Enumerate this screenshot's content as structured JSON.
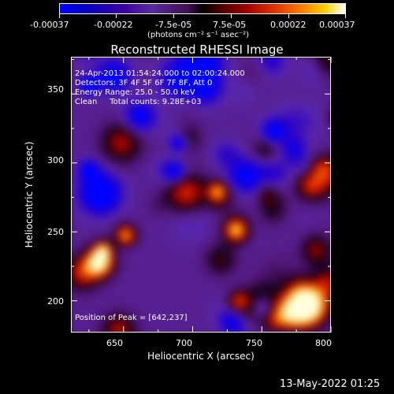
{
  "colorbar": {
    "tick_labels": [
      "-0.00037",
      "-0.00022",
      "-7.5e-05",
      "7.5e-05",
      "0.00022",
      "0.00037"
    ],
    "unit_label": "(photons cm⁻² s⁻¹ asec⁻²)",
    "range": [
      -0.00037,
      0.00037
    ]
  },
  "title": "Reconstructed RHESSI Image",
  "annotations": {
    "time_range": "24-Apr-2013 01:54:24.000 to 02:00:24.000",
    "detectors": "Detectors: 3F 4F 5F 6F 7F 8F, Att 0",
    "energy": "Energy Range: 25.0 - 50.0 keV",
    "clean": "Clean     Total counts: 9.28E+03",
    "peak": "Position of Peak = [642,237]"
  },
  "axes": {
    "xlabel": "Heliocentric X (arcsec)",
    "ylabel": "Heliocentric Y (arcsec)",
    "x_ticks": [
      "650",
      "700",
      "750",
      "800"
    ],
    "y_ticks": [
      "200",
      "250",
      "300",
      "350"
    ],
    "xlim": [
      612,
      800
    ],
    "ylim": [
      177,
      377
    ]
  },
  "footer": {
    "timestamp": "13-May-2022 01:25"
  },
  "colors": {
    "background": "#000000",
    "foreground": "#ffffff"
  }
}
